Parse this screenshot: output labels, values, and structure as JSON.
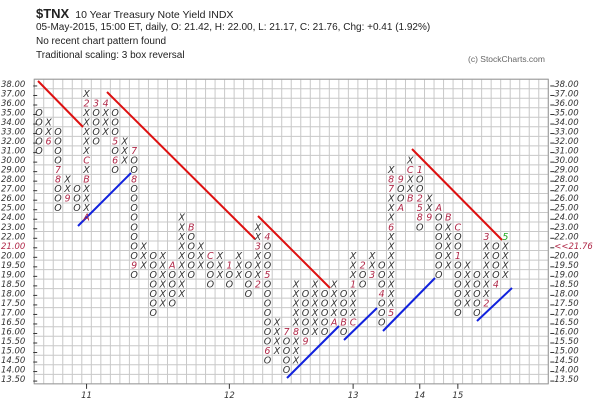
{
  "header": {
    "symbol": "$TNX",
    "name": "10 Year Treasury Note Yield  INDX",
    "quote": "05-May-2015, 15:00 ET, daily, O: 21.42, H: 22.00, L: 21.17, C: 21.76, Chg: +0.41 (1.92%)",
    "pattern": "No recent chart pattern found",
    "scaling": "Traditional scaling: 3 box reversal",
    "copyright": "(c) StockCharts.com"
  },
  "colors": {
    "mark": "#333333",
    "label": "#b02848",
    "current": "#22aa22",
    "resistance": "#dd1111",
    "support": "#1122dd",
    "grid": "#c8c8c8"
  },
  "chart_data": {
    "type": "point-and-figure",
    "box_reversal": 3,
    "price_scale": [
      "38.00",
      "37.00",
      "36.00",
      "35.00",
      "34.00",
      "33.00",
      "32.00",
      "31.00",
      "30.00",
      "29.00",
      "28.00",
      "27.00",
      "26.00",
      "25.00",
      "24.00",
      "23.00",
      "22.00",
      "21.00",
      "20.00",
      "19.50",
      "19.00",
      "18.50",
      "18.00",
      "17.50",
      "17.00",
      "16.50",
      "16.00",
      "15.50",
      "15.00",
      "14.50",
      "14.00",
      "13.50"
    ],
    "highlight_left_label": "21.00",
    "last_price_label": "<<21.76",
    "year_labels": [
      {
        "label": "11",
        "column": 5
      },
      {
        "label": "12",
        "column": 20
      },
      {
        "label": "13",
        "column": 33
      },
      {
        "label": "14",
        "column": 40
      },
      {
        "label": "15",
        "column": 44
      }
    ],
    "columns": [
      {
        "type": "O",
        "top": "35.00",
        "marks": "OOOOO"
      },
      {
        "type": "X",
        "top": "34.00",
        "marks": "XX6"
      },
      {
        "type": "O",
        "top": "33.00",
        "marks": "OOOO78OOO"
      },
      {
        "type": "X",
        "top": "28.00",
        "marks": "XX9"
      },
      {
        "type": "O",
        "top": "27.00",
        "marks": "OOO"
      },
      {
        "type": "X",
        "top": "37.00",
        "marks": "X2XXXXXCXBXXXA"
      },
      {
        "type": "O",
        "top": "36.00",
        "marks": "3OOOO"
      },
      {
        "type": "X",
        "top": "36.00",
        "marks": "4XXX"
      },
      {
        "type": "O",
        "top": "35.00",
        "marks": "OOO5O6O"
      },
      {
        "type": "X",
        "top": "32.00",
        "marks": "XXX"
      },
      {
        "type": "O",
        "top": "31.00",
        "marks": "7OO8OOOOOOOO9O"
      },
      {
        "type": "X",
        "top": "21.00",
        "marks": "XXX"
      },
      {
        "type": "O",
        "top": "20.00",
        "marks": "OOOOOOO"
      },
      {
        "type": "X",
        "top": "20.00",
        "marks": "XXXXXX"
      },
      {
        "type": "O",
        "top": "19.50",
        "marks": "AOOOO"
      },
      {
        "type": "X",
        "top": "24.00",
        "marks": "XXXXXXXXX"
      },
      {
        "type": "O",
        "top": "23.00",
        "marks": "BOOOOO"
      },
      {
        "type": "X",
        "top": "21.00",
        "marks": "XXX"
      },
      {
        "type": "O",
        "top": "20.00",
        "marks": "COOO"
      },
      {
        "type": "X",
        "top": "20.00",
        "marks": "XXX"
      },
      {
        "type": "O",
        "top": "19.50",
        "marks": "1OO"
      },
      {
        "type": "X",
        "top": "20.00",
        "marks": "XXX"
      },
      {
        "type": "O",
        "top": "19.50",
        "marks": "OOOO"
      },
      {
        "type": "X",
        "top": "23.00",
        "marks": "XX3XXX2"
      },
      {
        "type": "O",
        "top": "22.00",
        "marks": "4OOO5OOOOOOO6O"
      },
      {
        "type": "X",
        "top": "16.50",
        "marks": "XXXX"
      },
      {
        "type": "O",
        "top": "16.00",
        "marks": "7OOOO"
      },
      {
        "type": "X",
        "top": "18.50",
        "marks": "XXXXX8XXX"
      },
      {
        "type": "O",
        "top": "18.00",
        "marks": "OOOOO9"
      },
      {
        "type": "X",
        "top": "18.50",
        "marks": "XXXXXX"
      },
      {
        "type": "O",
        "top": "18.00",
        "marks": "OOOOO"
      },
      {
        "type": "X",
        "top": "18.50",
        "marks": "XXXXA"
      },
      {
        "type": "O",
        "top": "18.00",
        "marks": "OOOBO"
      },
      {
        "type": "X",
        "top": "20.00",
        "marks": "XXX1XXXC"
      },
      {
        "type": "O",
        "top": "19.50",
        "marks": "2OO"
      },
      {
        "type": "X",
        "top": "20.00",
        "marks": "XX3"
      },
      {
        "type": "O",
        "top": "19.50",
        "marks": "OOO4OOO"
      },
      {
        "type": "X",
        "top": "29.00",
        "marks": "X87XXX6XXXXXXXX5"
      },
      {
        "type": "O",
        "top": "28.00",
        "marks": "9OOA"
      },
      {
        "type": "X",
        "top": "30.00",
        "marks": "XCXXB"
      },
      {
        "type": "O",
        "top": "29.00",
        "marks": "1OO258O"
      },
      {
        "type": "X",
        "top": "26.00",
        "marks": "XX9"
      },
      {
        "type": "O",
        "top": "25.00",
        "marks": "AOOOOOOO"
      },
      {
        "type": "X",
        "top": "24.00",
        "marks": "BXXXXX"
      },
      {
        "type": "O",
        "top": "23.00",
        "marks": "COO1OOOOOO"
      },
      {
        "type": "X",
        "top": "19.50",
        "marks": "XXXXX"
      },
      {
        "type": "O",
        "top": "19.00",
        "marks": "OOOOO"
      },
      {
        "type": "X",
        "top": "22.00",
        "marks": "3XXXXXX2"
      },
      {
        "type": "O",
        "top": "21.00",
        "marks": "OOOO4"
      },
      {
        "type": "X",
        "top": "22.00",
        "marks": "5XXXX",
        "current": true
      }
    ]
  }
}
